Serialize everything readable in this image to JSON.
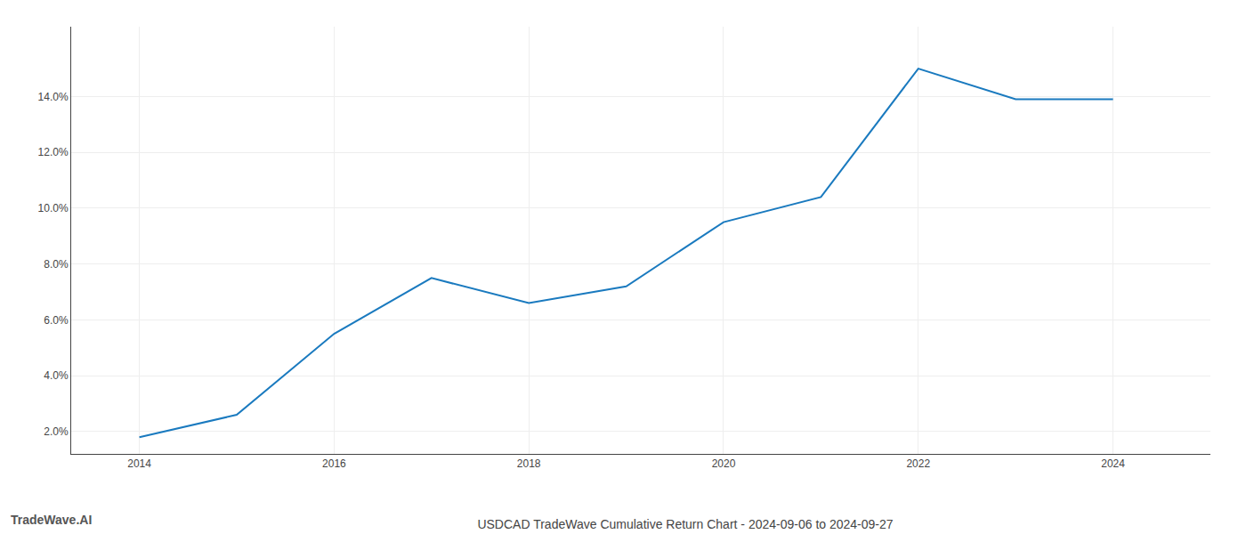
{
  "chart_data": {
    "type": "line",
    "title": "USDCAD TradeWave Cumulative Return Chart - 2024-09-06 to 2024-09-27",
    "annotations": [
      "TradeWave.AI"
    ],
    "x": [
      2014,
      2015,
      2016,
      2017,
      2018,
      2019,
      2020,
      2021,
      2022,
      2023,
      2024
    ],
    "values": [
      1.8,
      2.6,
      5.5,
      7.5,
      6.6,
      7.2,
      9.5,
      10.4,
      15.0,
      13.9,
      13.9
    ],
    "color": "#1a7abf",
    "xlim": [
      2013.3,
      2025.0
    ],
    "ylim": [
      1.2,
      16.5
    ],
    "xticks": [
      2014,
      2016,
      2018,
      2020,
      2022,
      2024
    ],
    "yticks": [
      {
        "value": 2.0,
        "label": "2.0%"
      },
      {
        "value": 4.0,
        "label": "4.0%"
      },
      {
        "value": 6.0,
        "label": "6.0%"
      },
      {
        "value": 8.0,
        "label": "8.0%"
      },
      {
        "value": 10.0,
        "label": "10.0%"
      },
      {
        "value": 12.0,
        "label": "12.0%"
      },
      {
        "value": 14.0,
        "label": "14.0%"
      }
    ],
    "grid": true
  }
}
